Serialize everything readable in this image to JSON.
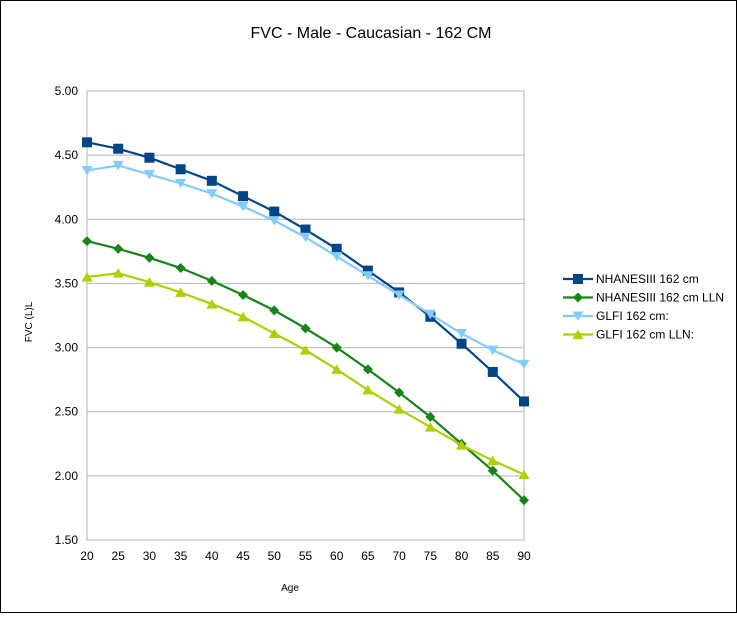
{
  "chart_data": {
    "type": "line",
    "title": "FVC - Male - Caucasian - 162 CM",
    "xlabel": "Age",
    "ylabel": "FVC (L)L",
    "x": [
      20,
      25,
      30,
      35,
      40,
      45,
      50,
      55,
      60,
      65,
      70,
      75,
      80,
      85,
      90
    ],
    "xlim": [
      20,
      90
    ],
    "ylim": [
      1.5,
      5.0
    ],
    "yticks": [
      "1.50",
      "2.00",
      "2.50",
      "3.00",
      "3.50",
      "4.00",
      "4.50",
      "5.00"
    ],
    "grid": "horizontal",
    "legend": "right",
    "series": [
      {
        "name": "NHANESIII 162 cm",
        "color": "#004586",
        "marker": "square",
        "values": [
          4.6,
          4.55,
          4.48,
          4.39,
          4.3,
          4.18,
          4.06,
          3.92,
          3.77,
          3.6,
          3.43,
          3.24,
          3.03,
          2.81,
          2.58
        ]
      },
      {
        "name": "NHANESIII 162 cm LLN",
        "color": "#168418",
        "marker": "diamond",
        "values": [
          3.83,
          3.77,
          3.7,
          3.62,
          3.52,
          3.41,
          3.29,
          3.15,
          3.0,
          2.83,
          2.65,
          2.46,
          2.25,
          2.04,
          1.81
        ]
      },
      {
        "name": "GLFI 162 cm:",
        "color": "#83CAFF",
        "marker": "triangle-down",
        "values": [
          4.38,
          4.42,
          4.35,
          4.28,
          4.2,
          4.1,
          3.99,
          3.86,
          3.71,
          3.56,
          3.41,
          3.26,
          3.11,
          2.98,
          2.87
        ]
      },
      {
        "name": "GLFI 162 cm LLN:",
        "color": "#AECF00",
        "marker": "triangle-up",
        "values": [
          3.55,
          3.58,
          3.51,
          3.43,
          3.34,
          3.24,
          3.11,
          2.98,
          2.83,
          2.67,
          2.52,
          2.38,
          2.24,
          2.12,
          2.01
        ]
      }
    ]
  }
}
